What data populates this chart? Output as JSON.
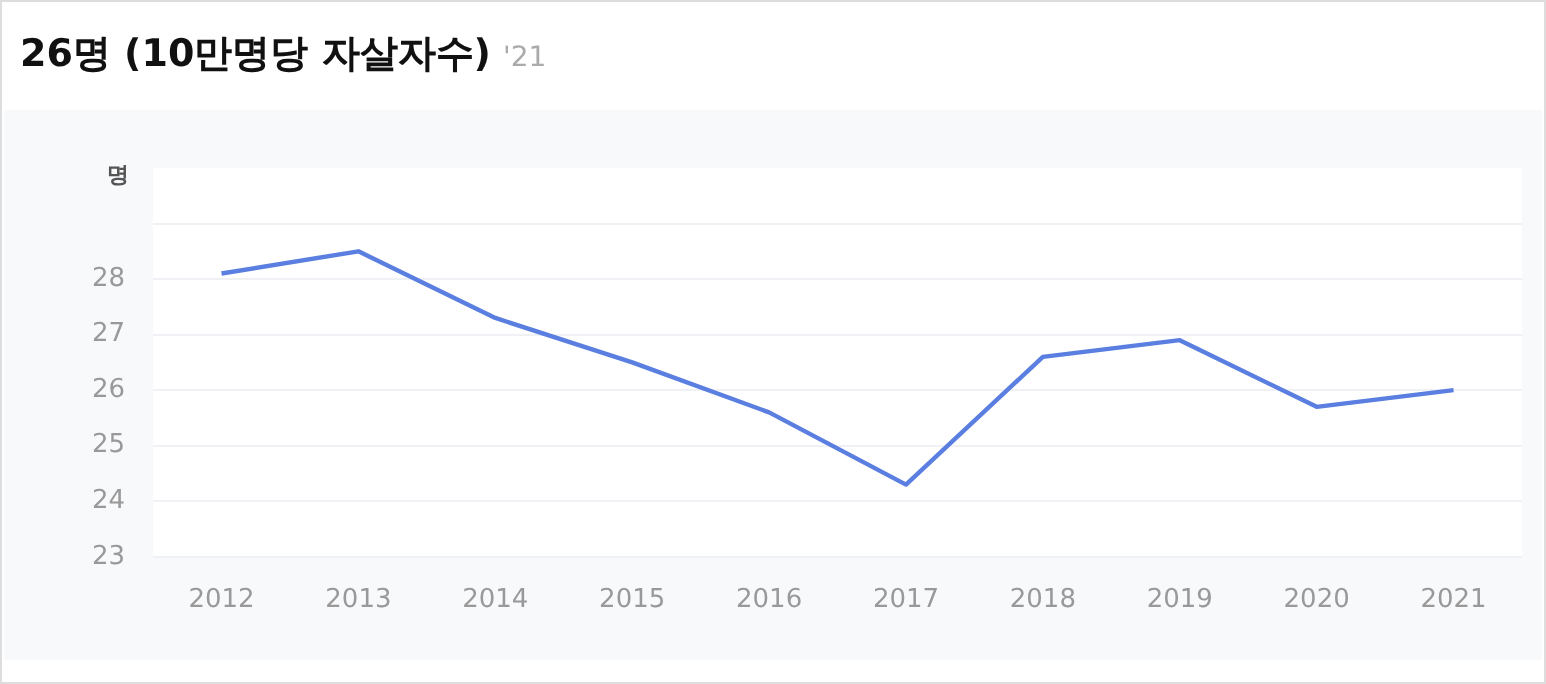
{
  "chart_data": {
    "type": "line",
    "title": "26명 (10만명당 자살자수)",
    "subtitle": "'21",
    "ylabel": "명",
    "categories": [
      "2012",
      "2013",
      "2014",
      "2015",
      "2016",
      "2017",
      "2018",
      "2019",
      "2020",
      "2021"
    ],
    "series": [
      {
        "color": "#5b7fe0",
        "values": [
          28.1,
          28.5,
          27.3,
          26.5,
          25.6,
          24.3,
          26.6,
          26.9,
          25.7,
          26.0
        ]
      }
    ],
    "ylim": [
      23,
      30
    ],
    "yticks": [
      23,
      24,
      25,
      26,
      27,
      28,
      {
        "value": 29,
        "label": null
      }
    ],
    "grid": "y",
    "legend": false,
    "marker": "none",
    "line_style": "solid"
  }
}
